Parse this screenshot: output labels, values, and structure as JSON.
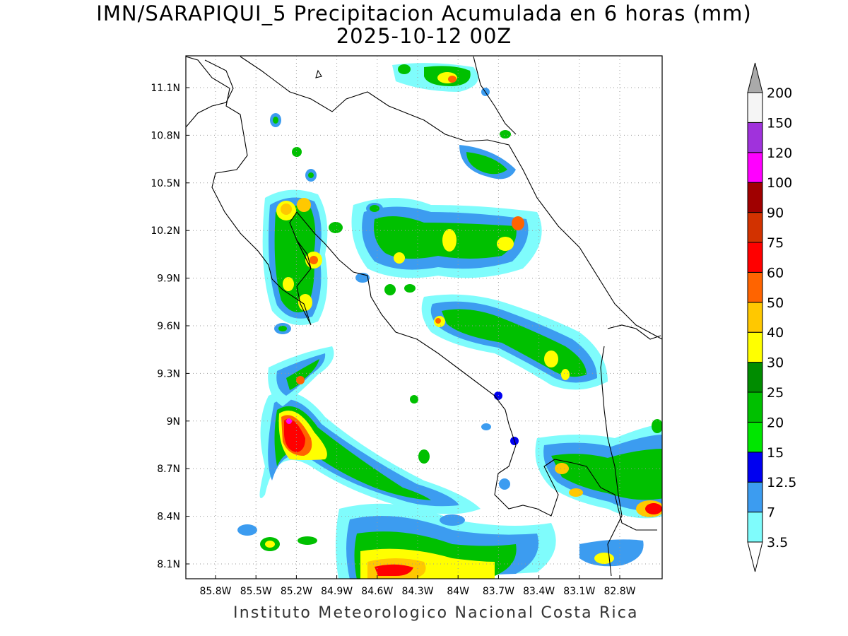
{
  "title": {
    "line1": "IMN/SARAPIQUI_5 Precipitacion Acumulada en 6 horas (mm)",
    "line2": "2025-10-12 00Z"
  },
  "footer": "Instituto Meteorologico Nacional Costa Rica",
  "map": {
    "lon_range": [
      -86.0,
      -82.6
    ],
    "lat_range": [
      8.0,
      11.3
    ],
    "lon_ticks": [
      "85.8W",
      "85.5W",
      "85.2W",
      "84.9W",
      "84.6W",
      "84.3W",
      "84W",
      "83.7W",
      "83.4W",
      "83.1W",
      "82.8W"
    ],
    "lat_ticks": [
      "11.1N",
      "10.8N",
      "10.5N",
      "10.2N",
      "9.9N",
      "9.6N",
      "9.3N",
      "9N",
      "8.7N",
      "8.4N",
      "8.1N"
    ],
    "grid": "dotted"
  },
  "colorbar": {
    "labels": [
      "3.5",
      "7",
      "12.5",
      "15",
      "20",
      "25",
      "30",
      "40",
      "50",
      "60",
      "75",
      "90",
      "100",
      "120",
      "150",
      "200"
    ],
    "colors": [
      "#7ffcfc",
      "#3c9cf0",
      "#0000f0",
      "#00e600",
      "#00c000",
      "#008c00",
      "#ffff00",
      "#ffc800",
      "#ff6400",
      "#ff0000",
      "#d23200",
      "#a00000",
      "#ff00ff",
      "#a032dc",
      "#f5f5f5",
      "#aaaaaa"
    ]
  }
}
